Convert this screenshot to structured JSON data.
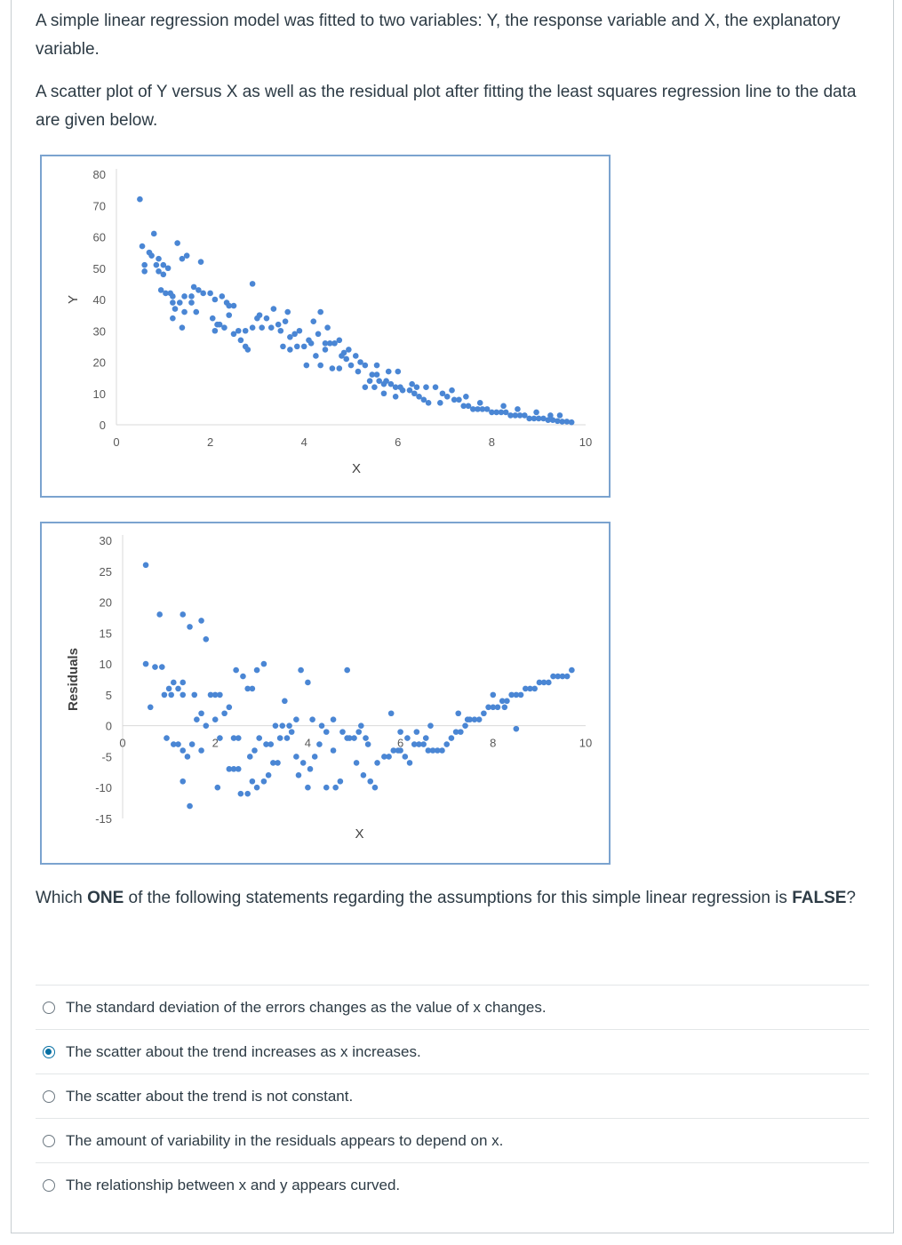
{
  "question": {
    "intro": "A simple linear regression model was fitted to two variables: Y, the response variable and X, the explanatory variable.",
    "plot_intro": "A scatter plot of Y versus X as well as the residual plot after fitting the least squares regression line to the data are given below.",
    "prompt_parts": {
      "pre": "Which ",
      "bold1": "ONE",
      "mid": " of the following statements regarding the assumptions for this simple linear regression is ",
      "bold2": "FALSE",
      "post": "?"
    }
  },
  "options": [
    {
      "label": "The standard deviation of the errors changes as the value of x changes.",
      "selected": false
    },
    {
      "label": "The scatter about the trend increases as x increases.",
      "selected": true
    },
    {
      "label": "The scatter about the trend is not constant.",
      "selected": false
    },
    {
      "label": "The amount of variability in the residuals appears to depend on x.",
      "selected": false
    },
    {
      "label": "The relationship between x and y appears curved.",
      "selected": false
    }
  ],
  "colors": {
    "point": "#4a86d4",
    "frame": "#7ba3cf",
    "axis": "#d9d9d9",
    "radio_selected": "#0770a3"
  },
  "chart_data": [
    {
      "type": "scatter",
      "xlabel": "X",
      "ylabel": "Y",
      "xlim": [
        0,
        10
      ],
      "ylim": [
        0,
        80
      ],
      "xticks": [
        "0",
        "2",
        "4",
        "6",
        "8",
        "10"
      ],
      "yticks": [
        "0",
        "10",
        "20",
        "30",
        "40",
        "50",
        "60",
        "70",
        "80"
      ],
      "points": [
        [
          0.5,
          72
        ],
        [
          0.8,
          61
        ],
        [
          0.55,
          57
        ],
        [
          0.7,
          55
        ],
        [
          0.75,
          54
        ],
        [
          0.9,
          53
        ],
        [
          0.6,
          51
        ],
        [
          0.85,
          51
        ],
        [
          1.0,
          51
        ],
        [
          1.1,
          50
        ],
        [
          0.6,
          49
        ],
        [
          0.9,
          49
        ],
        [
          1.0,
          48
        ],
        [
          1.3,
          58
        ],
        [
          1.5,
          54
        ],
        [
          1.4,
          53
        ],
        [
          1.8,
          52
        ],
        [
          0.95,
          43
        ],
        [
          1.05,
          42
        ],
        [
          1.15,
          42
        ],
        [
          1.2,
          41
        ],
        [
          1.45,
          41
        ],
        [
          1.6,
          41
        ],
        [
          1.2,
          39
        ],
        [
          1.35,
          39
        ],
        [
          1.6,
          39
        ],
        [
          1.25,
          37
        ],
        [
          1.45,
          36
        ],
        [
          1.7,
          36
        ],
        [
          1.2,
          34
        ],
        [
          1.4,
          31
        ],
        [
          1.65,
          44
        ],
        [
          1.75,
          43
        ],
        [
          1.85,
          42
        ],
        [
          2.0,
          42
        ],
        [
          2.1,
          40
        ],
        [
          2.25,
          41
        ],
        [
          2.35,
          39
        ],
        [
          2.4,
          38
        ],
        [
          2.05,
          34
        ],
        [
          2.15,
          32
        ],
        [
          2.1,
          30
        ],
        [
          2.2,
          32
        ],
        [
          2.4,
          35
        ],
        [
          2.5,
          38
        ],
        [
          2.3,
          31
        ],
        [
          2.5,
          29
        ],
        [
          2.6,
          30
        ],
        [
          2.65,
          27
        ],
        [
          2.75,
          25
        ],
        [
          2.8,
          24
        ],
        [
          2.75,
          30
        ],
        [
          2.9,
          31
        ],
        [
          3.0,
          34
        ],
        [
          2.9,
          45
        ],
        [
          3.05,
          35
        ],
        [
          3.2,
          34
        ],
        [
          3.1,
          31
        ],
        [
          3.3,
          31
        ],
        [
          3.45,
          32
        ],
        [
          3.6,
          33
        ],
        [
          3.5,
          30
        ],
        [
          3.7,
          28
        ],
        [
          3.8,
          29
        ],
        [
          3.9,
          30
        ],
        [
          3.35,
          37
        ],
        [
          3.65,
          36
        ],
        [
          3.55,
          25
        ],
        [
          3.7,
          24
        ],
        [
          3.85,
          25
        ],
        [
          4.0,
          25
        ],
        [
          4.15,
          26
        ],
        [
          4.1,
          27
        ],
        [
          4.2,
          33
        ],
        [
          4.3,
          29
        ],
        [
          4.35,
          36
        ],
        [
          4.55,
          26
        ],
        [
          4.65,
          26
        ],
        [
          4.75,
          27
        ],
        [
          4.5,
          31
        ],
        [
          4.45,
          26
        ],
        [
          4.8,
          22
        ],
        [
          4.9,
          21
        ],
        [
          4.95,
          24
        ],
        [
          4.25,
          22
        ],
        [
          4.35,
          19
        ],
        [
          4.05,
          19
        ],
        [
          4.45,
          24
        ],
        [
          4.6,
          18
        ],
        [
          4.75,
          18
        ],
        [
          4.85,
          23
        ],
        [
          5.0,
          19
        ],
        [
          5.1,
          22
        ],
        [
          5.2,
          20
        ],
        [
          5.15,
          17
        ],
        [
          5.3,
          19
        ],
        [
          5.45,
          16
        ],
        [
          5.55,
          16
        ],
        [
          5.4,
          14
        ],
        [
          5.6,
          14
        ],
        [
          5.75,
          14
        ],
        [
          5.85,
          13
        ],
        [
          5.95,
          12
        ],
        [
          6.05,
          12
        ],
        [
          6.1,
          11
        ],
        [
          5.3,
          12
        ],
        [
          5.5,
          12
        ],
        [
          5.7,
          13
        ],
        [
          5.55,
          19
        ],
        [
          5.8,
          17
        ],
        [
          5.7,
          10
        ],
        [
          5.95,
          9
        ],
        [
          6.25,
          11
        ],
        [
          6.35,
          10
        ],
        [
          6.45,
          9
        ],
        [
          6.55,
          8
        ],
        [
          6.65,
          7
        ],
        [
          6.4,
          12
        ],
        [
          6.6,
          12
        ],
        [
          6.8,
          12
        ],
        [
          6.95,
          10
        ],
        [
          7.05,
          9
        ],
        [
          7.2,
          8
        ],
        [
          7.3,
          8
        ],
        [
          7.4,
          6
        ],
        [
          7.5,
          6
        ],
        [
          7.6,
          5
        ],
        [
          7.7,
          5
        ],
        [
          7.8,
          5
        ],
        [
          7.9,
          5
        ],
        [
          8.0,
          4
        ],
        [
          8.1,
          4
        ],
        [
          8.2,
          4
        ],
        [
          8.3,
          4
        ],
        [
          8.4,
          3
        ],
        [
          8.5,
          3
        ],
        [
          8.6,
          3
        ],
        [
          8.7,
          3
        ],
        [
          8.8,
          2
        ],
        [
          8.9,
          2
        ],
        [
          9.0,
          2
        ],
        [
          9.1,
          2
        ],
        [
          9.2,
          1.5
        ],
        [
          9.3,
          1.5
        ],
        [
          9.4,
          1.2
        ],
        [
          9.5,
          1
        ],
        [
          9.6,
          1
        ],
        [
          9.7,
          0.8
        ],
        [
          6.0,
          17
        ],
        [
          6.3,
          13
        ],
        [
          6.9,
          7
        ],
        [
          7.15,
          11
        ],
        [
          7.45,
          9
        ],
        [
          7.75,
          7
        ],
        [
          8.25,
          6
        ],
        [
          8.55,
          5
        ],
        [
          8.95,
          4
        ],
        [
          9.25,
          3
        ],
        [
          9.45,
          3
        ]
      ]
    },
    {
      "type": "scatter",
      "xlabel": "X",
      "ylabel": "Residuals",
      "xlim": [
        0,
        10
      ],
      "ylim": [
        -15,
        30
      ],
      "xticks": [
        "0",
        "2",
        "4",
        "6",
        "8",
        "10"
      ],
      "yticks": [
        "-15",
        "-10",
        "-5",
        "0",
        "5",
        "10",
        "15",
        "20",
        "25",
        "30"
      ],
      "points": [
        [
          0.5,
          26
        ],
        [
          0.8,
          18
        ],
        [
          1.3,
          18
        ],
        [
          0.5,
          10
        ],
        [
          0.7,
          9.5
        ],
        [
          0.85,
          9.5
        ],
        [
          0.6,
          3
        ],
        [
          1.45,
          16
        ],
        [
          1.7,
          17
        ],
        [
          1.8,
          14
        ],
        [
          1.1,
          7
        ],
        [
          1.3,
          7
        ],
        [
          1.2,
          6
        ],
        [
          1.0,
          6
        ],
        [
          1.05,
          5
        ],
        [
          1.3,
          5
        ],
        [
          1.55,
          5
        ],
        [
          0.9,
          5
        ],
        [
          0.95,
          -2
        ],
        [
          1.1,
          -3
        ],
        [
          1.2,
          -3
        ],
        [
          1.3,
          -4
        ],
        [
          1.5,
          -3
        ],
        [
          1.4,
          -5
        ],
        [
          1.7,
          -4
        ],
        [
          1.3,
          -9
        ],
        [
          1.45,
          -13
        ],
        [
          1.6,
          1
        ],
        [
          1.7,
          2
        ],
        [
          1.8,
          0
        ],
        [
          1.9,
          5
        ],
        [
          2.0,
          5
        ],
        [
          2.1,
          5
        ],
        [
          2.0,
          1
        ],
        [
          2.1,
          -2
        ],
        [
          2.2,
          2
        ],
        [
          2.3,
          3
        ],
        [
          2.4,
          -2
        ],
        [
          2.5,
          -2
        ],
        [
          2.3,
          -7
        ],
        [
          2.4,
          -7
        ],
        [
          2.5,
          -7
        ],
        [
          2.05,
          -10
        ],
        [
          2.55,
          -11
        ],
        [
          2.7,
          -11
        ],
        [
          2.45,
          9
        ],
        [
          2.6,
          8
        ],
        [
          2.7,
          6
        ],
        [
          2.8,
          6
        ],
        [
          2.9,
          9
        ],
        [
          3.05,
          10
        ],
        [
          2.75,
          -5
        ],
        [
          2.85,
          -4
        ],
        [
          2.95,
          -2
        ],
        [
          3.1,
          -3
        ],
        [
          3.2,
          -3
        ],
        [
          2.8,
          -9
        ],
        [
          2.9,
          -10
        ],
        [
          3.05,
          -9
        ],
        [
          3.15,
          -8
        ],
        [
          3.25,
          -6
        ],
        [
          3.35,
          -6
        ],
        [
          3.4,
          -2
        ],
        [
          3.55,
          -2
        ],
        [
          3.65,
          -1
        ],
        [
          3.3,
          0
        ],
        [
          3.45,
          0
        ],
        [
          3.6,
          0
        ],
        [
          3.75,
          1
        ],
        [
          3.5,
          4
        ],
        [
          3.85,
          9
        ],
        [
          4.0,
          7
        ],
        [
          3.75,
          -5
        ],
        [
          3.9,
          -6
        ],
        [
          4.05,
          -7
        ],
        [
          4.15,
          -5
        ],
        [
          3.8,
          -8
        ],
        [
          4.0,
          -10
        ],
        [
          4.25,
          -3
        ],
        [
          4.1,
          1
        ],
        [
          4.3,
          0
        ],
        [
          4.4,
          -1
        ],
        [
          4.55,
          -4
        ],
        [
          4.4,
          -10
        ],
        [
          4.6,
          -10
        ],
        [
          4.7,
          -9
        ],
        [
          4.85,
          9
        ],
        [
          4.55,
          1
        ],
        [
          4.75,
          -1
        ],
        [
          4.85,
          -2
        ],
        [
          4.9,
          -2
        ],
        [
          5.0,
          -2
        ],
        [
          5.1,
          -1
        ],
        [
          5.25,
          -2
        ],
        [
          5.15,
          0
        ],
        [
          5.3,
          -3
        ],
        [
          5.05,
          -6
        ],
        [
          5.2,
          -8
        ],
        [
          5.35,
          -9
        ],
        [
          5.45,
          -10
        ],
        [
          5.5,
          -6
        ],
        [
          5.65,
          -5
        ],
        [
          5.75,
          -5
        ],
        [
          5.85,
          -4
        ],
        [
          5.95,
          -4
        ],
        [
          6.0,
          -4
        ],
        [
          6.1,
          -5
        ],
        [
          6.2,
          -6
        ],
        [
          6.3,
          -3
        ],
        [
          6.4,
          -3
        ],
        [
          6.5,
          -3
        ],
        [
          6.6,
          -4
        ],
        [
          6.7,
          -4
        ],
        [
          6.8,
          -4
        ],
        [
          6.9,
          -4
        ],
        [
          7.0,
          -3
        ],
        [
          7.1,
          -2
        ],
        [
          7.2,
          -1
        ],
        [
          7.3,
          -1
        ],
        [
          7.4,
          0
        ],
        [
          7.5,
          1
        ],
        [
          7.6,
          1
        ],
        [
          7.7,
          1
        ],
        [
          7.8,
          2
        ],
        [
          7.9,
          3
        ],
        [
          8.0,
          3
        ],
        [
          8.1,
          3
        ],
        [
          8.2,
          4
        ],
        [
          8.3,
          4
        ],
        [
          8.4,
          5
        ],
        [
          8.5,
          5
        ],
        [
          8.6,
          5
        ],
        [
          8.7,
          6
        ],
        [
          8.8,
          6
        ],
        [
          8.9,
          6
        ],
        [
          9.0,
          7
        ],
        [
          9.1,
          7
        ],
        [
          9.2,
          7
        ],
        [
          9.3,
          8
        ],
        [
          9.4,
          8
        ],
        [
          9.5,
          8
        ],
        [
          9.6,
          8
        ],
        [
          9.7,
          9
        ],
        [
          5.8,
          2
        ],
        [
          6.0,
          -1
        ],
        [
          6.15,
          -2
        ],
        [
          6.35,
          -1
        ],
        [
          6.55,
          -2
        ],
        [
          6.65,
          0
        ],
        [
          7.25,
          2
        ],
        [
          7.45,
          1
        ],
        [
          8.0,
          5
        ],
        [
          8.25,
          3
        ],
        [
          8.5,
          -0.5
        ]
      ]
    }
  ]
}
